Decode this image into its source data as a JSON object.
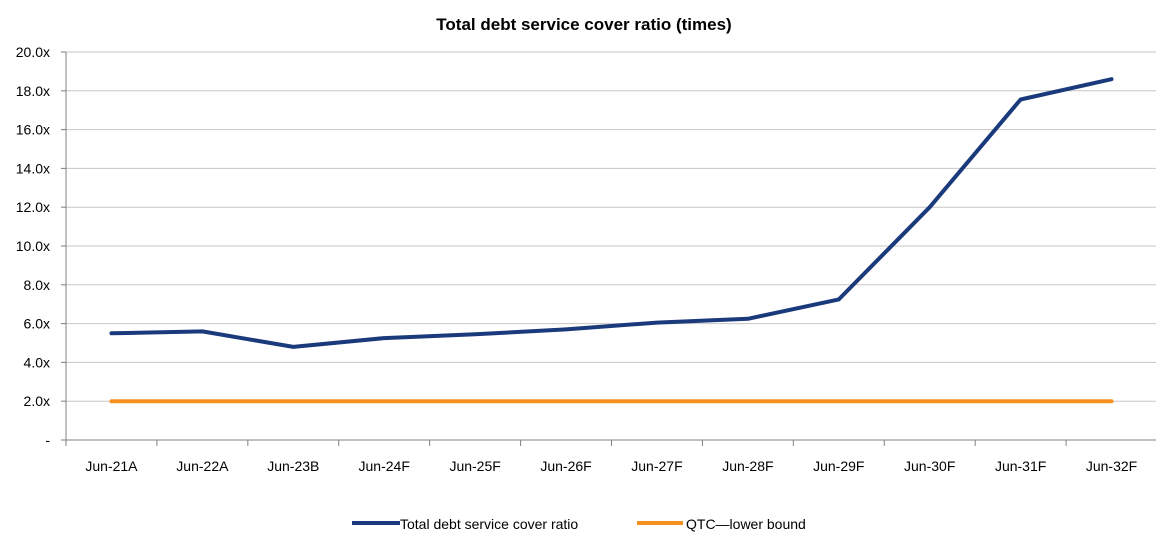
{
  "chart_data": {
    "type": "line",
    "title": "Total debt service cover ratio (times)",
    "xlabel": "",
    "ylabel": "",
    "categories": [
      "Jun-21A",
      "Jun-22A",
      "Jun-23B",
      "Jun-24F",
      "Jun-25F",
      "Jun-26F",
      "Jun-27F",
      "Jun-28F",
      "Jun-29F",
      "Jun-30F",
      "Jun-31F",
      "Jun-32F"
    ],
    "ylim": [
      0,
      20
    ],
    "yticks": [
      0,
      2,
      4,
      6,
      8,
      10,
      12,
      14,
      16,
      18,
      20
    ],
    "ytick_labels": [
      "-",
      "2.0x",
      "4.0x",
      "6.0x",
      "8.0x",
      "10.0x",
      "12.0x",
      "14.0x",
      "16.0x",
      "18.0x",
      "20.0x"
    ],
    "grid": true,
    "legend_position": "bottom",
    "series": [
      {
        "name": "Total debt service cover ratio",
        "color": "#1a3a7c",
        "values": [
          5.5,
          5.6,
          4.8,
          5.25,
          5.45,
          5.7,
          6.05,
          6.25,
          7.25,
          12.0,
          17.55,
          18.6
        ]
      },
      {
        "name": "QTC—lower bound",
        "color": "#f7901e",
        "values": [
          2.0,
          2.0,
          2.0,
          2.0,
          2.0,
          2.0,
          2.0,
          2.0,
          2.0,
          2.0,
          2.0,
          2.0
        ]
      }
    ]
  }
}
